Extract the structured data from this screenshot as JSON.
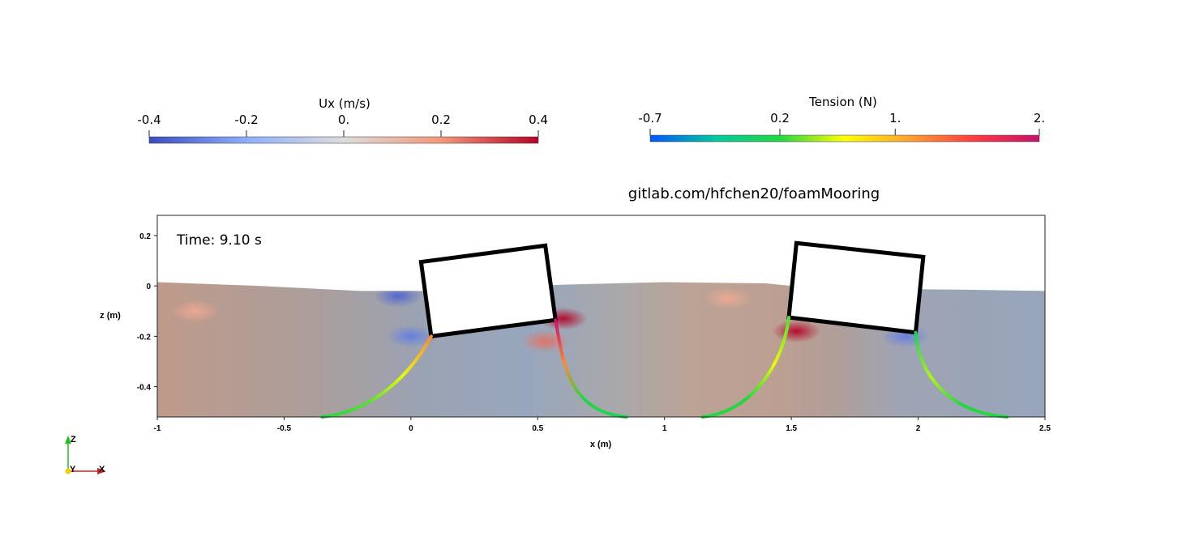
{
  "credit": "gitlab.com/hfchen20/foamMooring",
  "time_label": "Time: 9.10 s",
  "colorbars": [
    {
      "title": "Ux (m/s)",
      "ticks": [
        "-0.4",
        "-0.2",
        "0.",
        "0.2",
        "0.4"
      ],
      "tick_values": [
        -0.4,
        -0.2,
        0,
        0.2,
        0.4
      ],
      "range": [
        -0.4,
        0.4
      ],
      "colors": [
        "#3b4cc0",
        "#8db0fe",
        "#dddcdc",
        "#f4987a",
        "#b40426"
      ]
    },
    {
      "title": "Tension (N)",
      "ticks": [
        "-0.7",
        "0.2",
        "1.",
        "2."
      ],
      "tick_values": [
        -0.7,
        0.2,
        1.0,
        2.0
      ],
      "range": [
        -0.7,
        2.0
      ],
      "colors": [
        "#0055ff",
        "#00c8a0",
        "#22d840",
        "#ffff00",
        "#ffa030",
        "#ff3a40",
        "#c8106e"
      ]
    }
  ],
  "chart_data": {
    "type": "scatter",
    "xlabel": "x (m)",
    "ylabel": "z (m)",
    "xlim": [
      -1,
      2.5
    ],
    "ylim": [
      -0.52,
      0.28
    ],
    "x_ticks": [
      "-1",
      "-0.5",
      "0",
      "0.5",
      "1",
      "1.5",
      "2",
      "2.5"
    ],
    "x_tick_values": [
      -1,
      -0.5,
      0,
      0.5,
      1,
      1.5,
      2,
      2.5
    ],
    "y_ticks": [
      "0.2",
      "0",
      "-0.2",
      "-0.4"
    ],
    "y_tick_values": [
      0.2,
      0,
      -0.2,
      -0.4
    ],
    "free_surface": {
      "x": [
        -1,
        -0.6,
        -0.2,
        0.05,
        0.6,
        1.0,
        1.4,
        1.6,
        2.2,
        2.5
      ],
      "z": [
        0.015,
        0.0,
        -0.02,
        -0.02,
        0.005,
        0.015,
        0.01,
        -0.01,
        -0.015,
        -0.02
      ]
    },
    "floaters": [
      {
        "corners": [
          [
            0.04,
            0.095
          ],
          [
            0.53,
            0.16
          ],
          [
            0.57,
            -0.135
          ],
          [
            0.08,
            -0.2
          ]
        ]
      },
      {
        "corners": [
          [
            1.52,
            0.17
          ],
          [
            2.02,
            0.115
          ],
          [
            1.99,
            -0.185
          ],
          [
            1.49,
            -0.125
          ]
        ]
      }
    ],
    "mooring_lines": [
      {
        "points": [
          [
            0.08,
            -0.2
          ],
          [
            0.0,
            -0.35
          ],
          [
            -0.15,
            -0.5
          ],
          [
            -0.35,
            -0.52
          ]
        ],
        "tension": [
          1.2,
          0.6,
          0.3,
          0.2
        ]
      },
      {
        "points": [
          [
            0.57,
            -0.135
          ],
          [
            0.6,
            -0.3
          ],
          [
            0.62,
            -0.5
          ],
          [
            0.85,
            -0.52
          ]
        ],
        "tension": [
          2.0,
          1.2,
          0.2,
          0.1
        ]
      },
      {
        "points": [
          [
            1.49,
            -0.125
          ],
          [
            1.47,
            -0.3
          ],
          [
            1.35,
            -0.5
          ],
          [
            1.15,
            -0.52
          ]
        ],
        "tension": [
          0.3,
          0.6,
          0.2,
          0.2
        ]
      },
      {
        "points": [
          [
            1.99,
            -0.185
          ],
          [
            2.0,
            -0.33
          ],
          [
            2.1,
            -0.5
          ],
          [
            2.35,
            -0.52
          ]
        ],
        "tension": [
          0.1,
          0.5,
          0.2,
          0.2
        ]
      }
    ],
    "velocity_hotspots": [
      {
        "x": -0.05,
        "z": -0.04,
        "ux": -0.35
      },
      {
        "x": 0.6,
        "z": -0.13,
        "ux": 0.4
      },
      {
        "x": 0.53,
        "z": -0.22,
        "ux": 0.25
      },
      {
        "x": 0.0,
        "z": -0.2,
        "ux": -0.3
      },
      {
        "x": 1.52,
        "z": -0.18,
        "ux": 0.4
      },
      {
        "x": 1.95,
        "z": -0.2,
        "ux": -0.3
      },
      {
        "x": 1.25,
        "z": -0.05,
        "ux": 0.15
      },
      {
        "x": -0.85,
        "z": -0.1,
        "ux": 0.15
      }
    ]
  },
  "triad": {
    "z": "Z",
    "y": "Y",
    "x": "X"
  }
}
